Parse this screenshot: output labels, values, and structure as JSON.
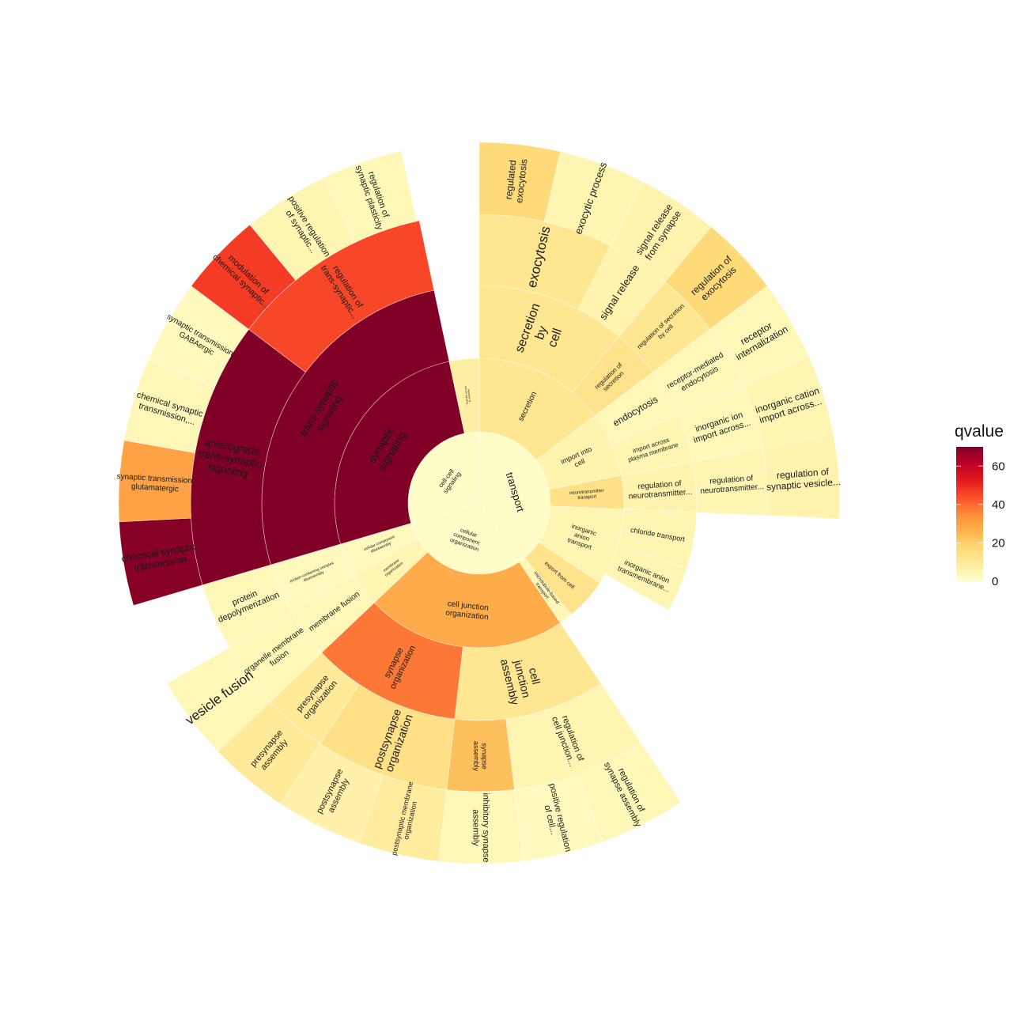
{
  "chart_data": {
    "type": "sunburst",
    "value_field": "qvalue",
    "legend": {
      "title": "qvalue",
      "ticks": [
        "0",
        "20",
        "40",
        "60"
      ],
      "tick_values": [
        0,
        20,
        40,
        60
      ],
      "limits": [
        0,
        70
      ],
      "placement": "right",
      "palette": [
        "#ffffcc",
        "#ffeda0",
        "#fed976",
        "#feb24c",
        "#fd8d3c",
        "#fc4e2a",
        "#e31a1c",
        "#bd0026",
        "#800026"
      ]
    },
    "tree": [
      {
        "lines": [
          "transport"
        ],
        "size": 146,
        "qvalue": 1,
        "children": [
          {
            "lines": [
              "secretion"
            ],
            "size": 53,
            "qvalue": 12,
            "children": [
              {
                "lines": [
                  "secretion",
                  "by",
                  "cell"
                ],
                "size": 40,
                "qvalue": 12,
                "children": [
                  {
                    "lines": [
                      "exocytosis"
                    ],
                    "size": 27,
                    "qvalue": 12,
                    "children": [
                      {
                        "lines": [
                          "regulated",
                          "exocytosis"
                        ],
                        "size": 13,
                        "qvalue": 17,
                        "children": []
                      },
                      {
                        "lines": [
                          "exocytic process"
                        ],
                        "size": 14,
                        "qvalue": 5,
                        "children": []
                      }
                    ]
                  },
                  {
                    "lines": [
                      "signal release"
                    ],
                    "size": 13,
                    "qvalue": 6,
                    "children": [
                      {
                        "lines": [
                          "signal release",
                          "from synapse"
                        ],
                        "size": 13,
                        "qvalue": 6,
                        "children": []
                      }
                    ]
                  }
                ]
              },
              {
                "lines": [
                  "regulation of",
                  "secretion"
                ],
                "size": 13,
                "qvalue": 13,
                "children": [
                  {
                    "lines": [
                      "regulation of secretion",
                      "by cell"
                    ],
                    "size": 13,
                    "qvalue": 12,
                    "children": [
                      {
                        "lines": [
                          "regulation of",
                          "exocytosis"
                        ],
                        "size": 13,
                        "qvalue": 17,
                        "children": []
                      }
                    ]
                  }
                ]
              }
            ]
          },
          {
            "lines": [
              "import into",
              "cell"
            ],
            "size": 26,
            "qvalue": 6,
            "children": [
              {
                "lines": [
                  "endocytosis"
                ],
                "size": 13,
                "qvalue": 4,
                "children": [
                  {
                    "lines": [
                      "receptor-mediated",
                      "endocytosis"
                    ],
                    "size": 13,
                    "qvalue": 4,
                    "children": [
                      {
                        "lines": [
                          "receptor",
                          "internalization"
                        ],
                        "size": 13,
                        "qvalue": 4,
                        "children": []
                      }
                    ]
                  }
                ]
              },
              {
                "lines": [
                  "import across",
                  "plasma membrane"
                ],
                "size": 13,
                "qvalue": 5,
                "children": [
                  {
                    "lines": [
                      "inorganic ion",
                      "import across..."
                    ],
                    "size": 13,
                    "qvalue": 4,
                    "children": [
                      {
                        "lines": [
                          "inorganic cation",
                          "import across..."
                        ],
                        "size": 13,
                        "qvalue": 5,
                        "children": []
                      }
                    ]
                  }
                ]
              }
            ]
          },
          {
            "lines": [
              "neurotransmitter",
              "transport"
            ],
            "size": 13.5,
            "qvalue": 14,
            "children": [
              {
                "lines": [
                  "regulation of",
                  "neurotransmitter..."
                ],
                "size": 13.5,
                "qvalue": 6,
                "children": [
                  {
                    "lines": [
                      "regulation of",
                      "neurotransmitter..."
                    ],
                    "size": 13.5,
                    "qvalue": 5,
                    "children": [
                      {
                        "lines": [
                          "regulation of",
                          "synaptic vesicle..."
                        ],
                        "size": 13.5,
                        "qvalue": 6,
                        "children": []
                      }
                    ]
                  }
                ]
              }
            ]
          },
          {
            "lines": [
              "inorganic",
              "anion",
              "transport"
            ],
            "size": 31,
            "qvalue": 5,
            "children": [
              {
                "lines": [
                  "chloride transport"
                ],
                "size": 15,
                "qvalue": 5,
                "children": []
              },
              {
                "lines": [
                  "inorganic anion",
                  "transmembrane..."
                ],
                "size": 12,
                "qvalue": 5,
                "children": []
              }
            ]
          },
          {
            "lines": [
              "export from cell"
            ],
            "size": 17,
            "qvalue": 13,
            "children": []
          },
          {
            "lines": [
              "microtubule-based",
              "transport"
            ],
            "size": 5.5,
            "qvalue": 4,
            "children": []
          }
        ]
      },
      {
        "lines": [
          "cellular",
          "component",
          "organization"
        ],
        "size": 107.5,
        "qvalue": 1,
        "children": [
          {
            "lines": [
              "cell junction",
              "organization"
            ],
            "size": 80.5,
            "qvalue": 28,
            "children": [
              {
                "lines": [
                  "cell",
                  "junction",
                  "assembly"
                ],
                "size": 40.5,
                "qvalue": 12,
                "children": [
                  {
                    "lines": [
                      "regulation of",
                      "cell junction..."
                    ],
                    "size": 27,
                    "qvalue": 5,
                    "children": [
                      {
                        "lines": [
                          "regulation of",
                          "synapse assembly"
                        ],
                        "size": 14,
                        "qvalue": 4,
                        "children": []
                      },
                      {
                        "lines": [
                          "positive regulation",
                          "of cell..."
                        ],
                        "size": 13,
                        "qvalue": 3,
                        "children": []
                      }
                    ]
                  },
                  {
                    "lines": [
                      "synapse",
                      "assembly"
                    ],
                    "size": 13.5,
                    "qvalue": 23,
                    "children": [
                      {
                        "lines": [
                          "inhibitory synapse",
                          "assembly"
                        ],
                        "size": 13.5,
                        "qvalue": 4,
                        "children": []
                      }
                    ]
                  }
                ]
              },
              {
                "lines": [
                  "synapse",
                  "organization"
                ],
                "size": 40,
                "qvalue": 38,
                "children": [
                  {
                    "lines": [
                      "postsynapse",
                      "organization"
                    ],
                    "size": 27,
                    "qvalue": 14,
                    "children": [
                      {
                        "lines": [
                          "postsynaptic membrane",
                          "organization"
                        ],
                        "size": 13,
                        "qvalue": 9,
                        "children": []
                      },
                      {
                        "lines": [
                          "postsynapse",
                          "assembly"
                        ],
                        "size": 14,
                        "qvalue": 7,
                        "children": []
                      }
                    ]
                  },
                  {
                    "lines": [
                      "presynapse",
                      "organization"
                    ],
                    "size": 13,
                    "qvalue": 10,
                    "children": [
                      {
                        "lines": [
                          "presynapse",
                          "assembly"
                        ],
                        "size": 13,
                        "qvalue": 10,
                        "children": []
                      }
                    ]
                  }
                ]
              }
            ]
          },
          {
            "lines": [
              "membrane",
              "organization"
            ],
            "size": 13.5,
            "qvalue": 5,
            "children": [
              {
                "lines": [
                  "membrane fusion"
                ],
                "size": 13.5,
                "qvalue": 4,
                "children": [
                  {
                    "lines": [
                      "organelle membrane",
                      "fusion"
                    ],
                    "size": 13.5,
                    "qvalue": 4,
                    "children": [
                      {
                        "lines": [
                          "vesicle fusion"
                        ],
                        "size": 13.5,
                        "qvalue": 4,
                        "children": []
                      }
                    ]
                  }
                ]
              }
            ]
          },
          {
            "lines": [
              "cellular component",
              "disassembly"
            ],
            "size": 13.5,
            "qvalue": 3,
            "children": [
              {
                "lines": [
                  "protein-containing complex",
                  "disassembly"
                ],
                "size": 13.5,
                "qvalue": 3,
                "children": [
                  {
                    "lines": [
                      "protein",
                      "depolymerization"
                    ],
                    "size": 13.5,
                    "qvalue": 4,
                    "children": []
                  }
                ]
              }
            ]
          }
        ]
      },
      {
        "lines": [
          "cell-cell",
          "signaling"
        ],
        "size": 106.5,
        "qvalue": 1,
        "children": [
          {
            "lines": [
              "synaptic",
              "signaling"
            ],
            "size": 94.5,
            "qvalue": 71,
            "children": [
              {
                "lines": [
                  "trans-synaptic",
                  "signaling"
                ],
                "size": 94.5,
                "qvalue": 70,
                "children": [
                  {
                    "lines": [
                      "anterograde",
                      "trans-synaptic",
                      "signaling"
                    ],
                    "size": 53.5,
                    "qvalue": 70,
                    "children": [
                      {
                        "lines": [
                          "chemical synaptic",
                          "transmission"
                        ],
                        "size": 13.5,
                        "qvalue": 69,
                        "children": []
                      },
                      {
                        "lines": [
                          "synaptic transmission,",
                          "glutamatergic"
                        ],
                        "size": 13,
                        "qvalue": 30,
                        "children": []
                      },
                      {
                        "lines": [
                          "chemical synaptic",
                          "transmission,..."
                        ],
                        "size": 13.5,
                        "qvalue": 4,
                        "children": []
                      },
                      {
                        "lines": [
                          "synaptic transmission,",
                          "GABAergic"
                        ],
                        "size": 13.5,
                        "qvalue": 3,
                        "children": []
                      }
                    ]
                  },
                  {
                    "lines": [
                      "regulation of",
                      "trans-synaptic..."
                    ],
                    "size": 41,
                    "qvalue": 45,
                    "children": [
                      {
                        "lines": [
                          "modulation of",
                          "chemical synaptic..."
                        ],
                        "size": 13.5,
                        "qvalue": 47,
                        "children": []
                      },
                      {
                        "lines": [
                          "positive regulation",
                          "of synaptic..."
                        ],
                        "size": 14,
                        "qvalue": 5,
                        "children": []
                      },
                      {
                        "lines": [
                          "regulation of",
                          "synaptic plasticity"
                        ],
                        "size": 13,
                        "qvalue": 4,
                        "children": []
                      }
                    ]
                  }
                ]
              }
            ]
          },
          {
            "lines": [
              "regulation of",
              "cell-cell signaling..."
            ],
            "size": 12,
            "qvalue": 8,
            "children": []
          }
        ]
      }
    ]
  }
}
